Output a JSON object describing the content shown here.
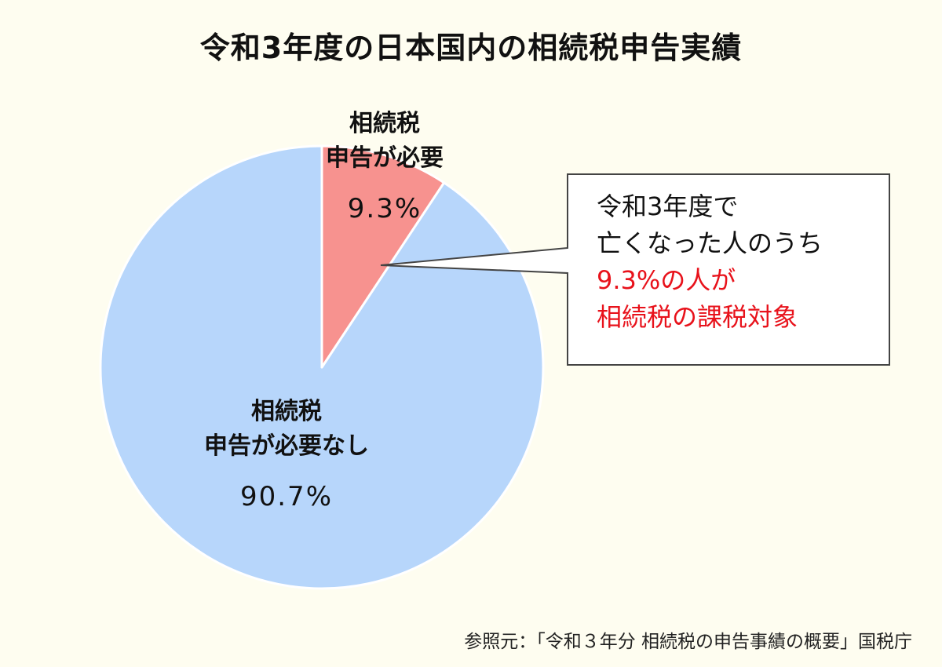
{
  "title": "令和3年度の日本国内の相続税申告実績",
  "chart_data": {
    "type": "pie",
    "title": "令和3年度の日本国内の相続税申告実績",
    "start_angle": "12 o'clock, clockwise",
    "slices": [
      {
        "label_line1": "相続税",
        "label_line2": "申告が必要",
        "value": 9.3,
        "value_label": "9.3%",
        "color": "#f7928f"
      },
      {
        "label_line1": "相続税",
        "label_line2": "申告が必要なし",
        "value": 90.7,
        "value_label": "90.7%",
        "color": "#b7d6fb"
      }
    ]
  },
  "callout": {
    "line1": "令和3年度で",
    "line2": "亡くなった人のうち",
    "line3": "9.3%の人が",
    "line4": "相続税の課税対象",
    "highlight_color": "#e8121b"
  },
  "source": "参照元：「令和３年分 相続税の申告事績の概要」国税庁"
}
